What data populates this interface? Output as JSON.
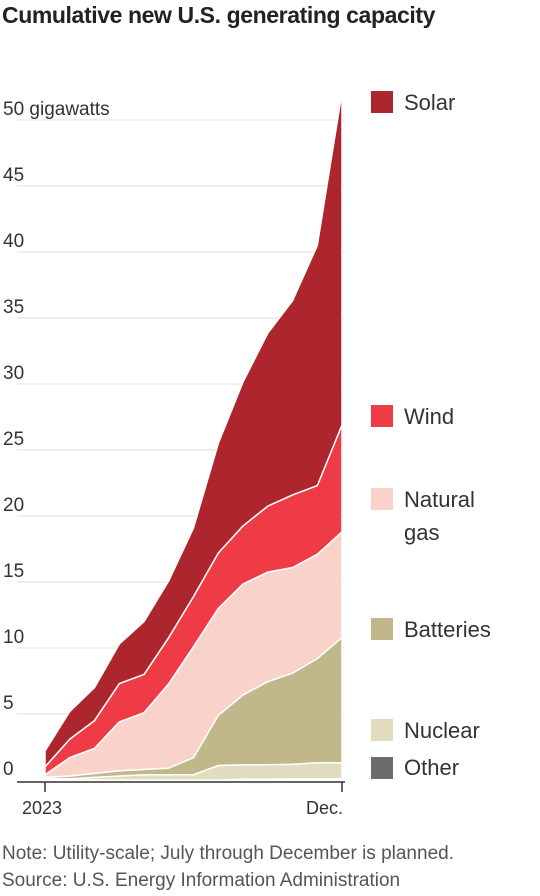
{
  "chart_data": {
    "type": "area",
    "stacked": true,
    "title": "Cumulative new U.S. generating capacity",
    "ylabel": "",
    "y_unit_label": "gigawatts",
    "y_ticks": [
      "0",
      "5",
      "10",
      "15",
      "20",
      "25",
      "30",
      "35",
      "40",
      "45",
      "50"
    ],
    "ylim": [
      0,
      52
    ],
    "x_tick_labels": [
      "2023",
      "Dec."
    ],
    "x": [
      0,
      1,
      2,
      3,
      4,
      5,
      6,
      7,
      8,
      9,
      10,
      11,
      12
    ],
    "series": [
      {
        "name": "Other",
        "color": "#6b6b6b",
        "values": [
          0,
          0,
          0,
          0,
          0,
          0,
          0,
          0,
          0.05,
          0.05,
          0.1,
          0.1,
          0.1
        ]
      },
      {
        "name": "Nuclear",
        "color": "#e2dcbf",
        "values": [
          0.1,
          0.1,
          0.2,
          0.3,
          0.4,
          0.4,
          0.4,
          1.1,
          1.1,
          1.1,
          1.1,
          1.2,
          1.2
        ]
      },
      {
        "name": "Batteries",
        "color": "#c0b88a",
        "values": [
          0.1,
          0.2,
          0.3,
          0.4,
          0.4,
          0.5,
          1.3,
          3.8,
          5.3,
          6.3,
          6.9,
          7.9,
          9.5
        ]
      },
      {
        "name": "Natural gas",
        "color": "#f9d3ca",
        "values": [
          0.2,
          1.4,
          1.9,
          3.7,
          4.3,
          6.4,
          8.4,
          8.1,
          8.4,
          8.3,
          8.0,
          7.9,
          8.0
        ]
      },
      {
        "name": "Wind",
        "color": "#ee3b45",
        "values": [
          0.6,
          1.4,
          2.1,
          2.9,
          2.9,
          3.5,
          3.8,
          4.2,
          4.4,
          5.0,
          5.5,
          5.2,
          8.1
        ]
      },
      {
        "name": "Solar",
        "color": "#ad262d",
        "values": [
          1.2,
          2.1,
          2.5,
          3.0,
          4.0,
          4.3,
          5.2,
          8.3,
          10.9,
          13.1,
          14.7,
          18.2,
          25.2
        ]
      }
    ],
    "legend_order": [
      "Solar",
      "Wind",
      "Natural gas",
      "Batteries",
      "Nuclear",
      "Other"
    ],
    "grid": true,
    "legend_placement": "right"
  },
  "footer": {
    "note": "Note: Utility-scale; July through December is planned.",
    "source": "Source: U.S. Energy Information Administration"
  },
  "legend_labels": {
    "solar": "Solar",
    "wind": "Wind",
    "gas_line1": "Natural",
    "gas_line2": "gas",
    "batteries": "Batteries",
    "nuclear": "Nuclear",
    "other": "Other"
  }
}
